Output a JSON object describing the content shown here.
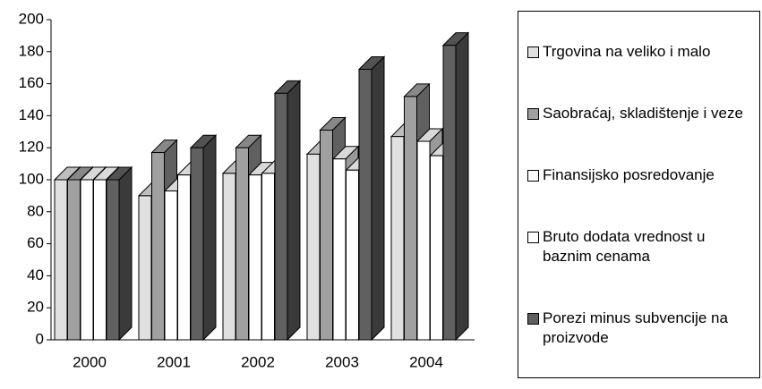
{
  "chart_data": {
    "type": "bar3d",
    "categories": [
      "2000",
      "2001",
      "2002",
      "2003",
      "2004"
    ],
    "series": [
      {
        "name": "Trgovina na veliko i malo",
        "color": "#e0e0e0",
        "values": [
          100,
          90,
          104,
          116,
          127
        ]
      },
      {
        "name": "Saobraćaj, skladištenje i veze",
        "color": "#a0a0a0",
        "values": [
          100,
          117,
          120,
          131,
          152
        ]
      },
      {
        "name": "Finansijsko posredovanje",
        "color": "#ffffff",
        "values": [
          100,
          93,
          103,
          113,
          124
        ]
      },
      {
        "name": "Bruto dodata vrednost u baznim cenama",
        "color": "#ffffff",
        "values": [
          100,
          103,
          104,
          106,
          115
        ]
      },
      {
        "name": "Porezi minus subvencije na proizvode",
        "color": "#606060",
        "values": [
          100,
          120,
          154,
          169,
          184
        ]
      }
    ],
    "ylim": [
      0,
      200
    ],
    "yticks": [
      0,
      20,
      40,
      60,
      80,
      100,
      120,
      140,
      160,
      180,
      200
    ],
    "legend": "right"
  }
}
